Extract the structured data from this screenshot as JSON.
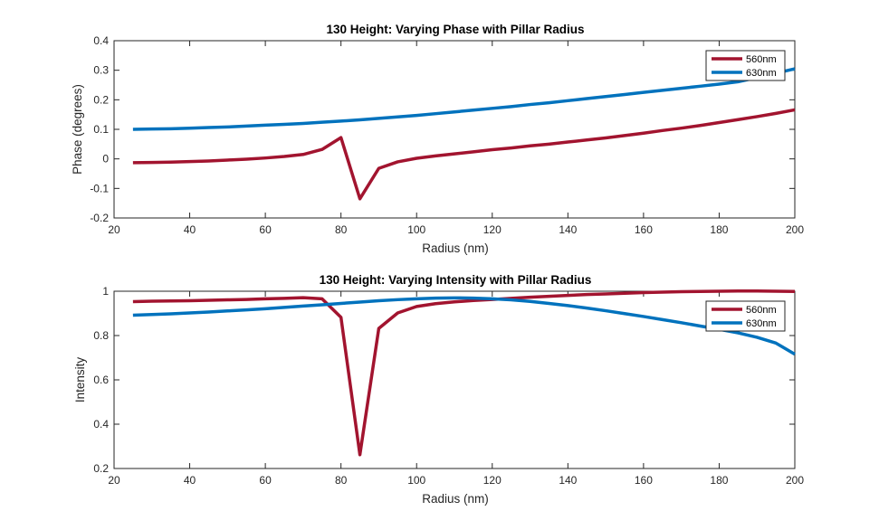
{
  "chart_data": [
    {
      "type": "line",
      "title": "130 Height: Varying Phase with Pillar Radius",
      "xlabel": "Radius (nm)",
      "ylabel": "Phase (degrees)",
      "xlim": [
        20,
        200
      ],
      "ylim": [
        -0.2,
        0.4
      ],
      "xticks": [
        20,
        40,
        60,
        80,
        100,
        120,
        140,
        160,
        180,
        200
      ],
      "yticks": [
        -0.2,
        -0.1,
        0,
        0.1,
        0.2,
        0.3,
        0.4
      ],
      "xtick_labels": [
        "20",
        "40",
        "60",
        "80",
        "100",
        "120",
        "140",
        "160",
        "180",
        "200"
      ],
      "ytick_labels": [
        "-0.2",
        "-0.1",
        "0",
        "0.1",
        "0.2",
        "0.3",
        "0.4"
      ],
      "grid": false,
      "legend": "top-right",
      "series": [
        {
          "name": "560nm",
          "color": "#A2142F",
          "x": [
            25,
            30,
            35,
            40,
            45,
            50,
            55,
            60,
            65,
            70,
            75,
            80,
            85,
            90,
            95,
            100,
            105,
            110,
            115,
            120,
            125,
            130,
            135,
            140,
            145,
            150,
            155,
            160,
            165,
            170,
            175,
            180,
            185,
            190,
            195,
            200
          ],
          "y": [
            -0.013,
            -0.012,
            -0.011,
            -0.009,
            -0.007,
            -0.004,
            -0.001,
            0.003,
            0.008,
            0.015,
            0.032,
            0.072,
            -0.135,
            -0.032,
            -0.01,
            0.002,
            0.01,
            0.017,
            0.024,
            0.031,
            0.037,
            0.044,
            0.05,
            0.057,
            0.064,
            0.071,
            0.079,
            0.087,
            0.096,
            0.104,
            0.113,
            0.123,
            0.133,
            0.143,
            0.154,
            0.166
          ]
        },
        {
          "name": "630nm",
          "color": "#0072BD",
          "x": [
            25,
            30,
            35,
            40,
            45,
            50,
            55,
            60,
            65,
            70,
            75,
            80,
            85,
            90,
            95,
            100,
            105,
            110,
            115,
            120,
            125,
            130,
            135,
            140,
            145,
            150,
            155,
            160,
            165,
            170,
            175,
            180,
            185,
            190,
            195,
            200
          ],
          "y": [
            0.1,
            0.101,
            0.102,
            0.104,
            0.106,
            0.108,
            0.111,
            0.114,
            0.117,
            0.12,
            0.124,
            0.128,
            0.132,
            0.137,
            0.142,
            0.147,
            0.153,
            0.159,
            0.165,
            0.171,
            0.177,
            0.184,
            0.19,
            0.197,
            0.204,
            0.211,
            0.218,
            0.225,
            0.232,
            0.239,
            0.246,
            0.253,
            0.261,
            0.275,
            0.29,
            0.305
          ]
        }
      ]
    },
    {
      "type": "line",
      "title": "130 Height: Varying Intensity with Pillar Radius",
      "xlabel": "Radius (nm)",
      "ylabel": "Intensity",
      "xlim": [
        20,
        200
      ],
      "ylim": [
        0.2,
        1
      ],
      "xticks": [
        20,
        40,
        60,
        80,
        100,
        120,
        140,
        160,
        180,
        200
      ],
      "yticks": [
        0.2,
        0.4,
        0.6,
        0.8,
        1
      ],
      "xtick_labels": [
        "20",
        "40",
        "60",
        "80",
        "100",
        "120",
        "140",
        "160",
        "180",
        "200"
      ],
      "ytick_labels": [
        "0.2",
        "0.4",
        "0.6",
        "0.8",
        "1"
      ],
      "grid": false,
      "legend": "top-right",
      "series": [
        {
          "name": "560nm",
          "color": "#A2142F",
          "x": [
            25,
            30,
            35,
            40,
            45,
            50,
            55,
            60,
            65,
            70,
            75,
            80,
            85,
            90,
            95,
            100,
            105,
            110,
            115,
            120,
            125,
            130,
            135,
            140,
            145,
            150,
            155,
            160,
            165,
            170,
            175,
            180,
            185,
            190,
            195,
            200
          ],
          "y": [
            0.953,
            0.955,
            0.956,
            0.957,
            0.959,
            0.961,
            0.963,
            0.966,
            0.968,
            0.971,
            0.966,
            0.882,
            0.262,
            0.832,
            0.902,
            0.931,
            0.944,
            0.952,
            0.958,
            0.963,
            0.968,
            0.973,
            0.977,
            0.981,
            0.985,
            0.988,
            0.991,
            0.994,
            0.996,
            0.998,
            0.999,
            1.0,
            1.001,
            1.001,
            1.0,
            0.999
          ]
        },
        {
          "name": "630nm",
          "color": "#0072BD",
          "x": [
            25,
            30,
            35,
            40,
            45,
            50,
            55,
            60,
            65,
            70,
            75,
            80,
            85,
            90,
            95,
            100,
            105,
            110,
            115,
            120,
            125,
            130,
            135,
            140,
            145,
            150,
            155,
            160,
            165,
            170,
            175,
            180,
            185,
            190,
            195,
            200
          ],
          "y": [
            0.892,
            0.895,
            0.898,
            0.902,
            0.906,
            0.911,
            0.916,
            0.921,
            0.927,
            0.933,
            0.939,
            0.945,
            0.951,
            0.957,
            0.962,
            0.966,
            0.969,
            0.97,
            0.969,
            0.966,
            0.961,
            0.954,
            0.945,
            0.935,
            0.924,
            0.912,
            0.899,
            0.886,
            0.872,
            0.858,
            0.843,
            0.828,
            0.812,
            0.792,
            0.766,
            0.716
          ]
        }
      ]
    }
  ]
}
